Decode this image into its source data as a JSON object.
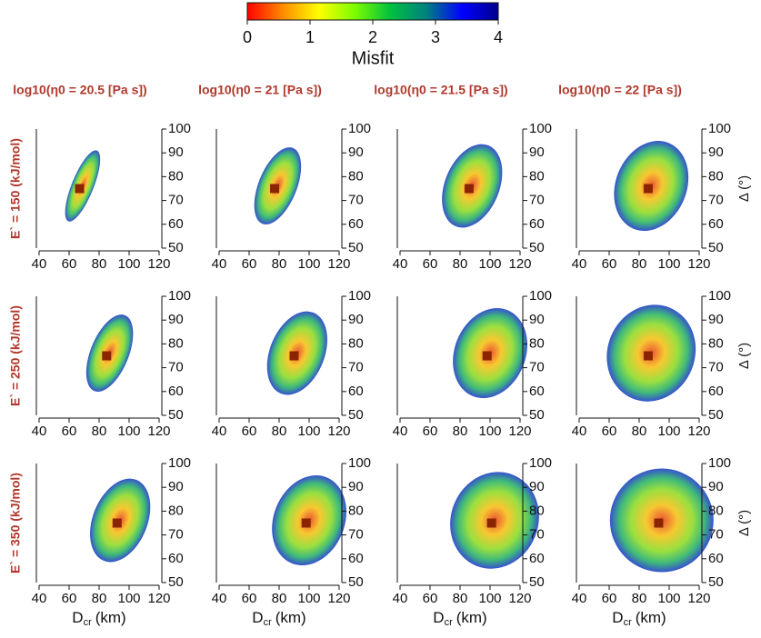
{
  "chart_data": [
    {
      "type": "colorbar",
      "label": "Misfit",
      "clim": [
        0,
        4
      ],
      "ticks": [
        0,
        1,
        2,
        3,
        4
      ],
      "colors": [
        "#ff0000",
        "#ff8c00",
        "#ffff00",
        "#7cfc00",
        "#00c040",
        "#008080",
        "#0000ff",
        "#00008b"
      ]
    },
    {
      "type": "scatter",
      "title": "log10(η0 = 20.5 [Pa s])",
      "row_label": "E` = 150 (kJ/mol)",
      "x": [
        67
      ],
      "y": [
        75
      ],
      "color": "#8b2500",
      "xlim": [
        40,
        120
      ],
      "ylim": [
        50,
        100
      ],
      "xticks": [
        40,
        60,
        80,
        100,
        120
      ],
      "yticks": [
        50,
        60,
        70,
        80,
        90,
        100
      ]
    },
    {
      "type": "scatter",
      "title": "log10(η0 = 21 [Pa s])",
      "x": [
        77
      ],
      "y": [
        75
      ],
      "color": "#8b2500",
      "xlim": [
        40,
        120
      ],
      "ylim": [
        50,
        100
      ],
      "xticks": [
        40,
        60,
        80,
        100,
        120
      ],
      "yticks": [
        50,
        60,
        70,
        80,
        90,
        100
      ]
    },
    {
      "type": "scatter",
      "title": "log10(η0 = 21.5 [Pa s])",
      "x": [
        86
      ],
      "y": [
        75
      ],
      "color": "#8b2500",
      "xlim": [
        40,
        120
      ],
      "ylim": [
        50,
        100
      ],
      "xticks": [
        40,
        60,
        80,
        100,
        120
      ],
      "yticks": [
        50,
        60,
        70,
        80,
        90,
        100
      ]
    },
    {
      "type": "scatter",
      "title": "log10(η0 = 22 [Pa s])",
      "y_label": "Δ (°)",
      "x": [
        86
      ],
      "y": [
        75
      ],
      "color": "#8b2500",
      "xlim": [
        40,
        120
      ],
      "ylim": [
        50,
        100
      ],
      "xticks": [
        40,
        60,
        80,
        100,
        120
      ],
      "yticks": [
        50,
        60,
        70,
        80,
        90,
        100
      ]
    },
    {
      "type": "scatter",
      "row_label": "E` = 250 (kJ/mol)",
      "x": [
        85
      ],
      "y": [
        75
      ],
      "color": "#8b2500",
      "xlim": [
        40,
        120
      ],
      "ylim": [
        50,
        100
      ],
      "xticks": [
        40,
        60,
        80,
        100,
        120
      ],
      "yticks": [
        50,
        60,
        70,
        80,
        90,
        100
      ]
    },
    {
      "type": "scatter",
      "x": [
        90
      ],
      "y": [
        75
      ],
      "color": "#8b2500",
      "xlim": [
        40,
        120
      ],
      "ylim": [
        50,
        100
      ],
      "xticks": [
        40,
        60,
        80,
        100,
        120
      ],
      "yticks": [
        50,
        60,
        70,
        80,
        90,
        100
      ]
    },
    {
      "type": "scatter",
      "x": [
        98
      ],
      "y": [
        75
      ],
      "color": "#8b2500",
      "xlim": [
        40,
        120
      ],
      "ylim": [
        50,
        100
      ],
      "xticks": [
        40,
        60,
        80,
        100,
        120
      ],
      "yticks": [
        50,
        60,
        70,
        80,
        90,
        100
      ]
    },
    {
      "type": "scatter",
      "y_label": "Δ (°)",
      "x": [
        86
      ],
      "y": [
        75
      ],
      "color": "#8b2500",
      "xlim": [
        40,
        120
      ],
      "ylim": [
        50,
        100
      ],
      "xticks": [
        40,
        60,
        80,
        100,
        120
      ],
      "yticks": [
        50,
        60,
        70,
        80,
        90,
        100
      ]
    },
    {
      "type": "scatter",
      "row_label": "E` = 350 (kJ/mol)",
      "x_label": [
        "D",
        "cr",
        "(km)"
      ],
      "x": [
        92
      ],
      "y": [
        75
      ],
      "color": "#8b2500",
      "xlim": [
        40,
        120
      ],
      "ylim": [
        50,
        100
      ],
      "xticks": [
        40,
        60,
        80,
        100,
        120
      ],
      "yticks": [
        50,
        60,
        70,
        80,
        90,
        100
      ]
    },
    {
      "type": "scatter",
      "x_label": [
        "D",
        "cr",
        "(km)"
      ],
      "x": [
        98
      ],
      "y": [
        75
      ],
      "color": "#8b2500",
      "xlim": [
        40,
        120
      ],
      "ylim": [
        50,
        100
      ],
      "xticks": [
        40,
        60,
        80,
        100,
        120
      ],
      "yticks": [
        50,
        60,
        70,
        80,
        90,
        100
      ]
    },
    {
      "type": "scatter",
      "x_label": [
        "D",
        "cr",
        "(km)"
      ],
      "x": [
        101
      ],
      "y": [
        75
      ],
      "color": "#8b2500",
      "xlim": [
        40,
        120
      ],
      "ylim": [
        50,
        100
      ],
      "xticks": [
        40,
        60,
        80,
        100,
        120
      ],
      "yticks": [
        50,
        60,
        70,
        80,
        90,
        100
      ]
    },
    {
      "type": "scatter",
      "y_label": "Δ (°)",
      "x_label": [
        "D",
        "cr",
        "(km)"
      ],
      "x": [
        93
      ],
      "y": [
        75
      ],
      "color": "#8b2500",
      "xlim": [
        40,
        120
      ],
      "ylim": [
        50,
        100
      ],
      "xticks": [
        40,
        60,
        80,
        100,
        120
      ],
      "yticks": [
        50,
        60,
        70,
        80,
        90,
        100
      ]
    }
  ]
}
